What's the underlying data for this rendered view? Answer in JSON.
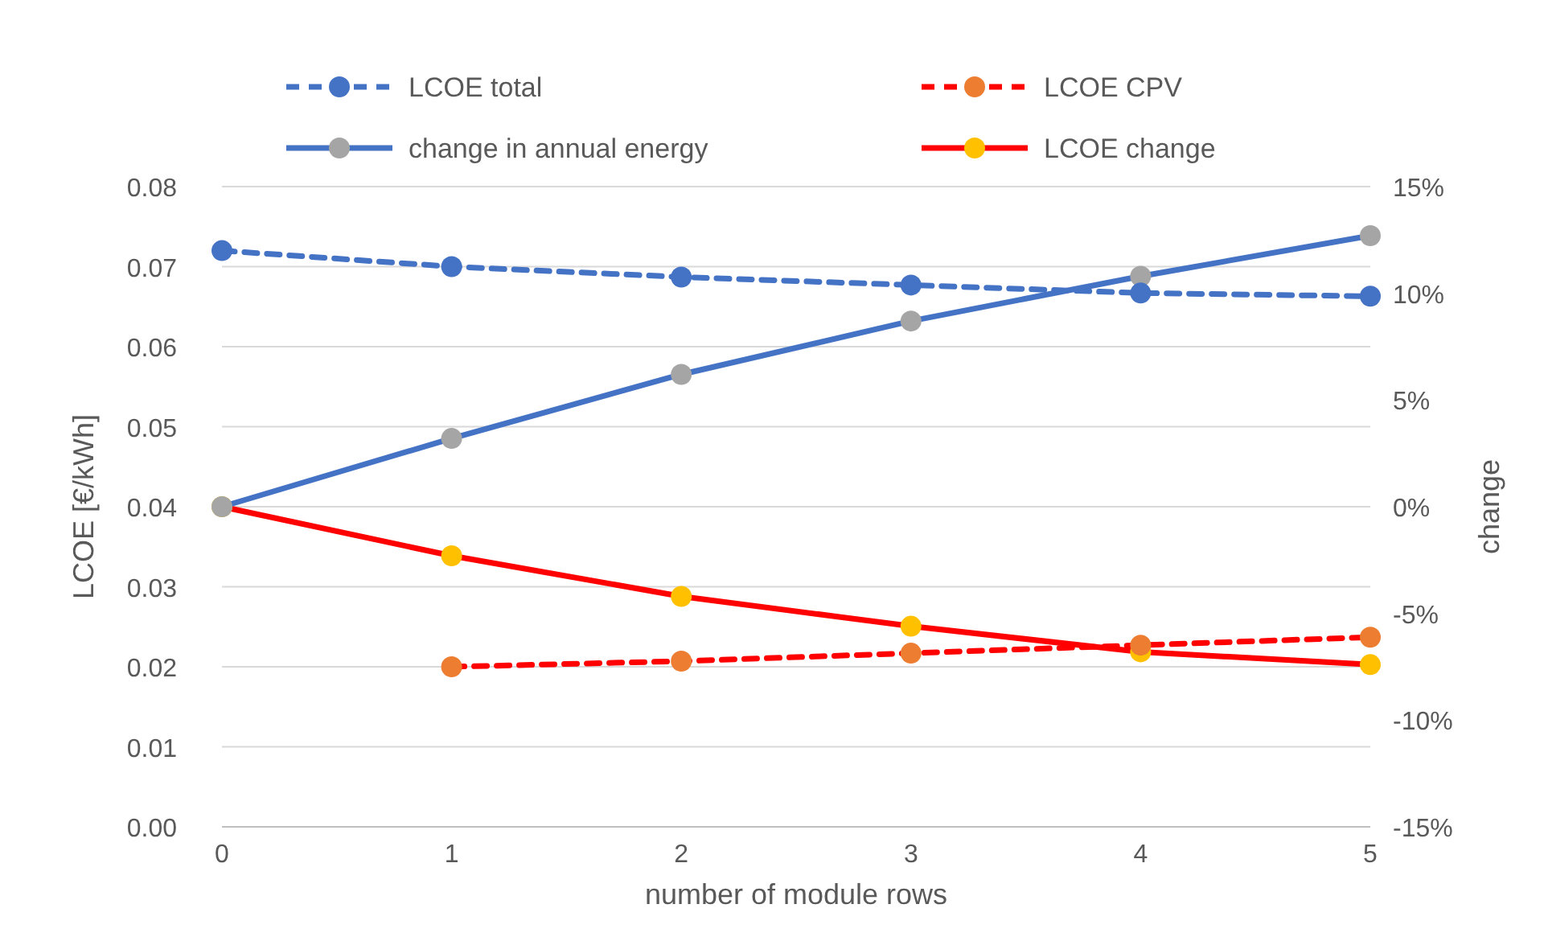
{
  "chart_data": {
    "type": "line",
    "xlabel": "number of module rows",
    "ylabel": "LCOE [€/kWh]",
    "y2label": "change",
    "x": [
      0,
      1,
      2,
      3,
      4,
      5
    ],
    "xlim": [
      0,
      5
    ],
    "xticks": [
      0,
      1,
      2,
      3,
      4,
      5
    ],
    "ylim": [
      0,
      0.08
    ],
    "yticks": [
      {
        "value": 0,
        "label": "0.00"
      },
      {
        "value": 0.01,
        "label": "0.01"
      },
      {
        "value": 0.02,
        "label": "0.02"
      },
      {
        "value": 0.03,
        "label": "0.03"
      },
      {
        "value": 0.04,
        "label": "0.04"
      },
      {
        "value": 0.05,
        "label": "0.05"
      },
      {
        "value": 0.06,
        "label": "0.06"
      },
      {
        "value": 0.07,
        "label": "0.07"
      },
      {
        "value": 0.08,
        "label": "0.08"
      }
    ],
    "y2lim": [
      -15,
      15
    ],
    "y2ticks": [
      {
        "value": 15,
        "label": "15%"
      },
      {
        "value": 10,
        "label": "10%"
      },
      {
        "value": 5,
        "label": "5%"
      },
      {
        "value": 0,
        "label": "0%"
      },
      {
        "value": -5,
        "label": "-5%"
      },
      {
        "value": -10,
        "label": "-10%"
      },
      {
        "value": -15,
        "label": "-15%"
      }
    ],
    "grid": "y",
    "legend": "top",
    "marker": "circle",
    "series": [
      {
        "name": "LCOE total",
        "color": "#4472c4",
        "colors": [
          "#4472c4",
          "#4472c4",
          "#4472c4",
          "#4472c4",
          "#4472c4",
          "#4472c4"
        ],
        "line_style": "dashed",
        "values": [
          0.072,
          0.07,
          0.0687,
          0.0677,
          0.0667,
          0.0663
        ]
      },
      {
        "name": "LCOE CPV",
        "color": "#ff0000",
        "colors": [
          null,
          "#ed7d31",
          "#ed7d31",
          "#ed7d31",
          "#ed7d31",
          "#ed7d31"
        ],
        "line_style": "dashed",
        "values": [
          null,
          0.02,
          0.0207,
          0.0217,
          0.0227,
          0.0237
        ]
      },
      {
        "name": "change in annual energy",
        "color": "#4472c4",
        "colors": [
          "#a5a5a5",
          "#a5a5a5",
          "#a5a5a5",
          "#a5a5a5",
          "#a5a5a5",
          "#a5a5a5"
        ],
        "line_style": "solid",
        "axis": "y2",
        "values": [
          0,
          3.2,
          6.2,
          8.7,
          10.8,
          12.7
        ]
      },
      {
        "name": "LCOE change",
        "color": "#ff0000",
        "colors": [
          "#ffc000",
          "#ffc000",
          "#ffc000",
          "#ffc000",
          "#ffc000",
          "#ffc000"
        ],
        "line_style": "solid",
        "axis": "y2",
        "values": [
          0,
          -2.3,
          -4.2,
          -5.6,
          -6.8,
          -7.4
        ]
      }
    ]
  }
}
